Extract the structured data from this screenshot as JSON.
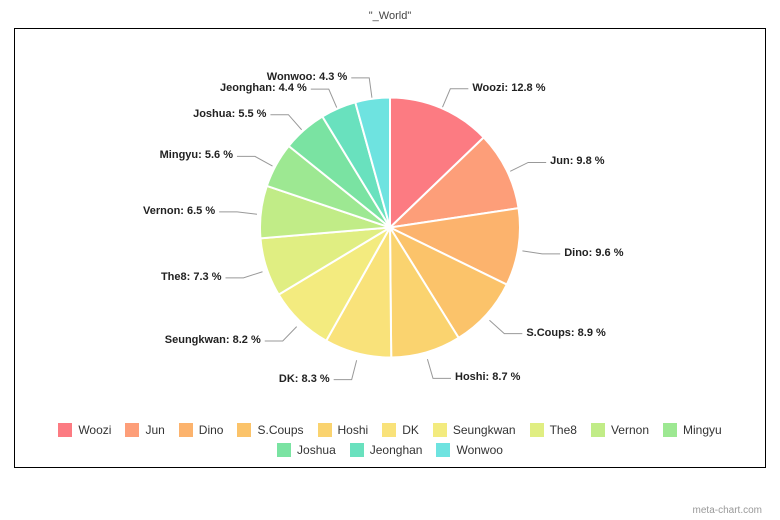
{
  "title": "\"_World\"",
  "watermark": "meta-chart.com",
  "chart": {
    "type": "pie",
    "radius": 130,
    "slice_gap_color": "#ffffff",
    "slice_gap_width": 2,
    "background_color": "#ffffff",
    "frame_border_color": "#000000",
    "label_fontsize": 11,
    "label_fontweight": "bold",
    "leader_color": "#999999",
    "legend_fontsize": 12,
    "start_angle_deg": -90,
    "slices": [
      {
        "label": "Woozi",
        "value": 12.8,
        "color": "#fc7b82"
      },
      {
        "label": "Jun",
        "value": 9.8,
        "color": "#fd9e79"
      },
      {
        "label": "Dino",
        "value": 9.6,
        "color": "#fcb36d"
      },
      {
        "label": "S.Coups",
        "value": 8.9,
        "color": "#fbc36a"
      },
      {
        "label": "Hoshi",
        "value": 8.7,
        "color": "#fad36f"
      },
      {
        "label": "DK",
        "value": 8.3,
        "color": "#f9e27a"
      },
      {
        "label": "Seungkwan",
        "value": 8.2,
        "color": "#f3eb7f"
      },
      {
        "label": "The8",
        "value": 7.3,
        "color": "#e0ee82"
      },
      {
        "label": "Vernon",
        "value": 6.5,
        "color": "#c1ec87"
      },
      {
        "label": "Mingyu",
        "value": 5.6,
        "color": "#9de892"
      },
      {
        "label": "Joshua",
        "value": 5.5,
        "color": "#7ae3a2"
      },
      {
        "label": "Jeonghan",
        "value": 4.4,
        "color": "#69e1be"
      },
      {
        "label": "Wonwoo",
        "value": 4.3,
        "color": "#6ee3e0"
      }
    ]
  }
}
